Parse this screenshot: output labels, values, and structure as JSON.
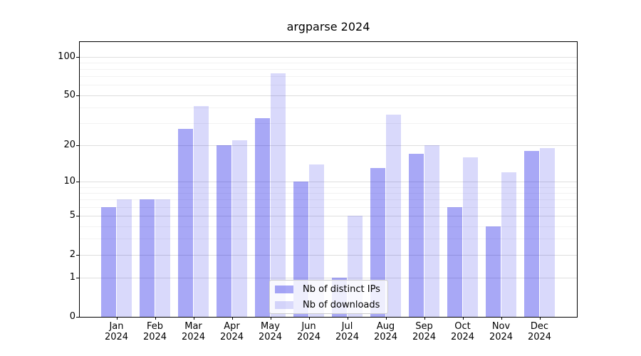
{
  "title": "argparse 2024",
  "legend": {
    "items": [
      {
        "label": "Nb of distinct IPs",
        "color": "rgba(0,0,230,0.34)"
      },
      {
        "label": "Nb of downloads",
        "color": "rgba(0,0,230,0.15)"
      }
    ]
  },
  "chart_data": {
    "type": "bar",
    "title": "argparse 2024",
    "xlabel": "",
    "ylabel": "",
    "year": "2024",
    "categories": [
      "Jan",
      "Feb",
      "Mar",
      "Apr",
      "May",
      "Jun",
      "Jul",
      "Aug",
      "Sep",
      "Oct",
      "Nov",
      "Dec"
    ],
    "series": [
      {
        "name": "Nb of distinct IPs",
        "key": "distinct-ips",
        "color": "rgba(0,0,230,0.34)",
        "values": [
          6,
          7,
          27,
          20,
          33,
          10,
          1,
          13,
          17,
          6,
          4,
          18
        ]
      },
      {
        "name": "Nb of downloads",
        "key": "downloads",
        "color": "rgba(0,0,230,0.15)",
        "values": [
          7,
          7,
          41,
          22,
          74,
          14,
          5,
          35,
          20,
          16,
          12,
          19
        ]
      }
    ],
    "yscale": "log1p",
    "ylim": [
      0,
      130
    ],
    "y_major_ticks": [
      100,
      50,
      20,
      10,
      5,
      2,
      1,
      0
    ],
    "y_minor_ticks": [
      90,
      80,
      70,
      60,
      40,
      30,
      9,
      8,
      7,
      6,
      4,
      3
    ],
    "grid": true,
    "legend_position": "lower center"
  },
  "style": {
    "grid_major_color": "#dedede",
    "grid_minor_color": "#f2f2f2",
    "spine_color": "#000000",
    "background": "#ffffff"
  }
}
